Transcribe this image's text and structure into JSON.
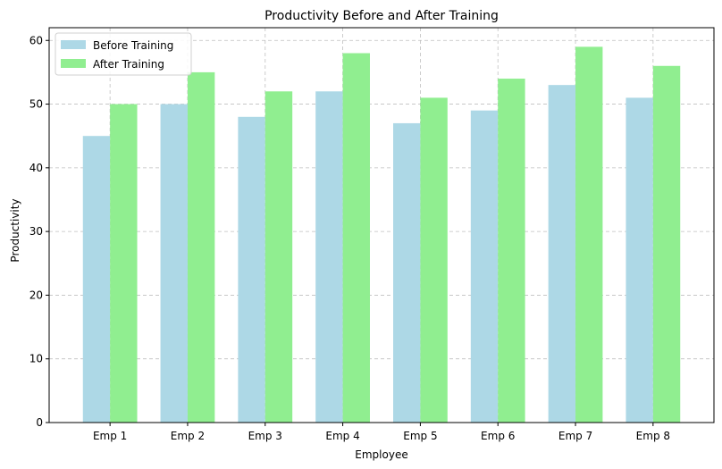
{
  "chart_data": {
    "type": "bar",
    "title": "Productivity Before and After Training",
    "xlabel": "Employee",
    "ylabel": "Productivity",
    "categories": [
      "Emp 1",
      "Emp 2",
      "Emp 3",
      "Emp 4",
      "Emp 5",
      "Emp 6",
      "Emp 7",
      "Emp 8"
    ],
    "series": [
      {
        "name": "Before Training",
        "color": "#add8e6",
        "values": [
          45,
          50,
          48,
          52,
          47,
          49,
          53,
          51
        ]
      },
      {
        "name": "After Training",
        "color": "#90ee90",
        "values": [
          50,
          55,
          52,
          58,
          51,
          54,
          59,
          56
        ]
      }
    ],
    "ylim": [
      0,
      62
    ],
    "yticks": [
      0,
      10,
      20,
      30,
      40,
      50,
      60
    ],
    "grid": true,
    "legend_position": "top-left"
  }
}
